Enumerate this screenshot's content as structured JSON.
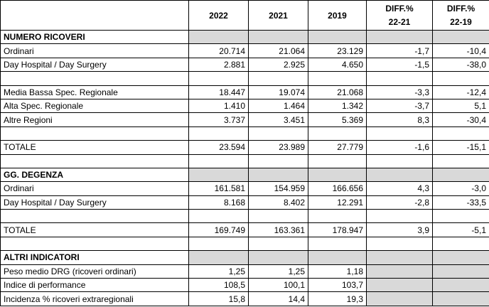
{
  "header": {
    "label": "",
    "cols": [
      "2022",
      "2021",
      "2019"
    ],
    "diffs": [
      {
        "line1": "DIFF.%",
        "line2": "22-21"
      },
      {
        "line1": "DIFF.%",
        "line2": "22-19"
      }
    ]
  },
  "rows": [
    {
      "type": "section",
      "label": "NUMERO RICOVERI",
      "gray": [
        1,
        1,
        1,
        1,
        1
      ]
    },
    {
      "type": "data",
      "label": "Ordinari",
      "cells": [
        "20.714",
        "21.064",
        "23.129",
        "-1,7",
        "-10,4"
      ],
      "gray": [
        0,
        0,
        0,
        0,
        0
      ]
    },
    {
      "type": "data",
      "label": "Day Hospital / Day Surgery",
      "cells": [
        "2.881",
        "2.925",
        "4.650",
        "-1,5",
        "-38,0"
      ],
      "gray": [
        0,
        0,
        0,
        0,
        0
      ]
    },
    {
      "type": "blank",
      "label": "",
      "cells": [
        "",
        "",
        "",
        "",
        ""
      ],
      "gray": [
        0,
        0,
        0,
        0,
        0
      ]
    },
    {
      "type": "data",
      "label": "Media Bassa Spec. Regionale",
      "cells": [
        "18.447",
        "19.074",
        "21.068",
        "-3,3",
        "-12,4"
      ],
      "gray": [
        0,
        0,
        0,
        0,
        0
      ]
    },
    {
      "type": "data",
      "label": "Alta Spec. Regionale",
      "cells": [
        "1.410",
        "1.464",
        "1.342",
        "-3,7",
        "5,1"
      ],
      "gray": [
        0,
        0,
        0,
        0,
        0
      ]
    },
    {
      "type": "data",
      "label": "Altre Regioni",
      "cells": [
        "3.737",
        "3.451",
        "5.369",
        "8,3",
        "-30,4"
      ],
      "gray": [
        0,
        0,
        0,
        0,
        0
      ]
    },
    {
      "type": "blank",
      "label": "",
      "cells": [
        "",
        "",
        "",
        "",
        ""
      ],
      "gray": [
        0,
        0,
        0,
        0,
        0
      ]
    },
    {
      "type": "data",
      "label": "TOTALE",
      "cells": [
        "23.594",
        "23.989",
        "27.779",
        "-1,6",
        "-15,1"
      ],
      "gray": [
        0,
        0,
        0,
        0,
        0
      ]
    },
    {
      "type": "blank",
      "label": "",
      "cells": [
        "",
        "",
        "",
        "",
        ""
      ],
      "gray": [
        0,
        0,
        0,
        0,
        0
      ]
    },
    {
      "type": "section",
      "label": "GG. DEGENZA",
      "gray": [
        1,
        1,
        1,
        1,
        1
      ]
    },
    {
      "type": "data",
      "label": "Ordinari",
      "cells": [
        "161.581",
        "154.959",
        "166.656",
        "4,3",
        "-3,0"
      ],
      "gray": [
        0,
        0,
        0,
        0,
        0
      ]
    },
    {
      "type": "data",
      "label": "Day Hospital / Day Surgery",
      "cells": [
        "8.168",
        "8.402",
        "12.291",
        "-2,8",
        "-33,5"
      ],
      "gray": [
        0,
        0,
        0,
        0,
        0
      ]
    },
    {
      "type": "blank",
      "label": "",
      "cells": [
        "",
        "",
        "",
        "",
        ""
      ],
      "gray": [
        0,
        0,
        0,
        0,
        0
      ]
    },
    {
      "type": "data",
      "label": "TOTALE",
      "cells": [
        "169.749",
        "163.361",
        "178.947",
        "3,9",
        "-5,1"
      ],
      "gray": [
        0,
        0,
        0,
        0,
        0
      ]
    },
    {
      "type": "blank",
      "label": "",
      "cells": [
        "",
        "",
        "",
        "",
        ""
      ],
      "gray": [
        0,
        0,
        0,
        0,
        0
      ]
    },
    {
      "type": "section",
      "label": "ALTRI INDICATORI",
      "gray": [
        1,
        1,
        1,
        1,
        1
      ]
    },
    {
      "type": "data",
      "label": "Peso medio DRG (ricoveri ordinari)",
      "cells": [
        "1,25",
        "1,25",
        "1,18",
        "",
        ""
      ],
      "gray": [
        0,
        0,
        0,
        1,
        1
      ]
    },
    {
      "type": "data",
      "label": "Indice di performance",
      "cells": [
        "108,5",
        "100,1",
        "103,7",
        "",
        ""
      ],
      "gray": [
        0,
        0,
        0,
        1,
        1
      ]
    },
    {
      "type": "data",
      "label": "Incidenza % ricoveri extraregionali",
      "cells": [
        "15,8",
        "14,4",
        "19,3",
        "",
        ""
      ],
      "gray": [
        0,
        0,
        0,
        1,
        1
      ]
    }
  ]
}
